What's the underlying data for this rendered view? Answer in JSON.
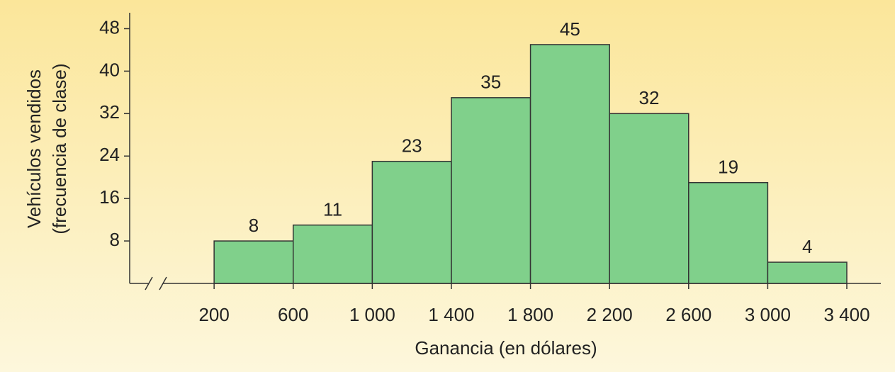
{
  "chart_data": {
    "type": "histogram",
    "xlabel": "Ganancia (en dólares)",
    "ylabel": [
      "Vehículos vendidos",
      "(frecuencia de clase)"
    ],
    "bins": [
      200,
      600,
      1000,
      1400,
      1800,
      2200,
      2600,
      3000,
      3400
    ],
    "values": [
      8,
      11,
      23,
      35,
      45,
      32,
      19,
      4
    ],
    "color": "#80d08b",
    "xlim": [
      -227,
      3572
    ],
    "ylim": [
      0,
      51
    ],
    "xticks": [
      200,
      600,
      {
        "value": 1000,
        "label": "1 000"
      },
      {
        "value": 1400,
        "label": "1 400"
      },
      {
        "value": 1800,
        "label": "1 800"
      },
      {
        "value": 2200,
        "label": "2 200"
      },
      {
        "value": 2600,
        "label": "2 600"
      },
      {
        "value": 3000,
        "label": "3 000"
      },
      {
        "value": 3400,
        "label": "3 400"
      }
    ],
    "yticks": [
      8,
      16,
      24,
      32,
      40,
      48
    ]
  }
}
